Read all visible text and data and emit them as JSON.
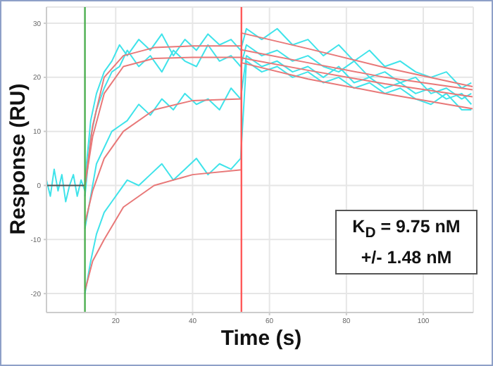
{
  "chart_data": {
    "type": "line",
    "xlabel": "Time (s)",
    "ylabel": "Response (RU)",
    "xlim": [
      2,
      113
    ],
    "ylim": [
      -23.5,
      33
    ],
    "xticks": [
      20,
      40,
      60,
      80,
      100
    ],
    "yticks": [
      -20,
      -10,
      0,
      10,
      20,
      30
    ],
    "grid": true,
    "legend": false,
    "marker": "none",
    "line_style": "solid",
    "annotations": [
      "K$_{D}$ = 9.75 nM",
      "+/- 1.48 nM"
    ],
    "ref_lines": [
      {
        "axis": "x",
        "value": 12,
        "color": "#4caf50"
      },
      {
        "axis": "x",
        "value": 52.7,
        "color": "#ff5a5a"
      }
    ],
    "series": [
      {
        "color": "#3fe3ea",
        "x": [
          2,
          3,
          4,
          5,
          6,
          7,
          8,
          9,
          10,
          11,
          12
        ],
        "values": [
          1,
          -2,
          3,
          -1,
          2,
          -3,
          0,
          2,
          -2,
          1,
          -1
        ]
      },
      {
        "color": "#3fe3ea",
        "x": [
          12,
          13.5,
          15,
          17,
          19,
          21,
          23,
          26,
          29,
          32,
          35,
          38,
          41,
          44,
          47,
          50,
          52.5,
          54,
          58,
          62,
          66,
          70,
          74,
          78,
          82,
          86,
          90,
          94,
          98,
          102,
          106,
          110,
          112.5
        ],
        "values": [
          1,
          12,
          17,
          21,
          23,
          26,
          24,
          27,
          25,
          28,
          24,
          27,
          25,
          28,
          26,
          27,
          25,
          29,
          27,
          29,
          26,
          27,
          24,
          26,
          23,
          25,
          22,
          23,
          21,
          20,
          21,
          18,
          19
        ]
      },
      {
        "color": "#3fe3ea",
        "x": [
          12,
          13.5,
          15,
          17,
          19,
          21,
          23,
          26,
          29,
          32,
          35,
          38,
          41,
          44,
          47,
          50,
          52.5,
          54,
          58,
          62,
          66,
          70,
          74,
          78,
          82,
          86,
          90,
          94,
          98,
          102,
          106,
          110,
          112.5
        ],
        "values": [
          -2,
          9,
          14,
          18,
          21,
          22,
          25,
          22,
          24,
          21,
          25,
          23,
          22,
          26,
          23,
          24,
          22,
          26,
          24,
          25,
          23,
          24,
          22,
          21,
          23,
          20,
          21,
          19,
          20,
          17,
          18,
          16,
          17
        ]
      },
      {
        "color": "#3fe3ea",
        "x": [
          12,
          13.5,
          15,
          17,
          19,
          21,
          23,
          26,
          29,
          32,
          35,
          38,
          41,
          44,
          47,
          50,
          52.5,
          54,
          58,
          62,
          66,
          70,
          74,
          78,
          82,
          86,
          90,
          94,
          98,
          102,
          106,
          110,
          112.5
        ],
        "values": [
          -8,
          -2,
          4,
          7,
          10,
          11,
          12,
          15,
          13,
          16,
          14,
          17,
          15,
          16,
          14,
          18,
          16,
          24,
          22,
          23,
          21,
          22,
          20,
          22,
          19,
          20,
          18,
          19,
          17,
          18,
          16,
          17,
          15
        ]
      },
      {
        "color": "#3fe3ea",
        "x": [
          12,
          13.5,
          15,
          17,
          19,
          21,
          23,
          26,
          29,
          32,
          35,
          38,
          41,
          44,
          47,
          50,
          52.5,
          54,
          58,
          62,
          66,
          70,
          74,
          78,
          82,
          86,
          90,
          94,
          98,
          102,
          106,
          110,
          112.5
        ],
        "values": [
          -20,
          -14,
          -9,
          -5,
          -3,
          -1,
          1,
          0,
          2,
          4,
          1,
          3,
          5,
          2,
          4,
          3,
          5,
          23,
          21,
          22,
          20,
          21,
          19,
          20,
          18,
          19,
          17,
          18,
          16,
          15,
          17,
          14,
          14
        ]
      },
      {
        "color": "#555555",
        "x": [
          2,
          12
        ],
        "values": [
          0,
          0
        ]
      },
      {
        "color": "#e87878",
        "x": [
          12,
          14,
          17,
          22,
          30,
          40,
          52.7,
          52.7,
          70,
          90,
          112.8
        ],
        "values": [
          0,
          11,
          20,
          24,
          25.5,
          25.8,
          25.8,
          28.2,
          25.3,
          21.8,
          18.3
        ]
      },
      {
        "color": "#e87878",
        "x": [
          12,
          14,
          17,
          22,
          30,
          40,
          52.7,
          52.7,
          70,
          90,
          112.8
        ],
        "values": [
          0,
          9,
          17,
          22,
          23.5,
          23.7,
          23.7,
          25.1,
          22.7,
          20,
          17.7
        ]
      },
      {
        "color": "#e87878",
        "x": [
          12,
          14,
          17,
          22,
          30,
          40,
          52.7,
          52.7,
          70,
          90,
          112.8
        ],
        "values": [
          -7,
          -1,
          5,
          10,
          14,
          15.7,
          16,
          23.6,
          21.3,
          18.8,
          16.4
        ]
      },
      {
        "color": "#e87878",
        "x": [
          12,
          14,
          17,
          22,
          30,
          40,
          52.7,
          52.7,
          70,
          90,
          112.8
        ],
        "values": [
          -19.5,
          -14,
          -10,
          -4,
          0,
          2,
          2.9,
          22.7,
          19.7,
          17,
          14.2
        ]
      }
    ]
  }
}
